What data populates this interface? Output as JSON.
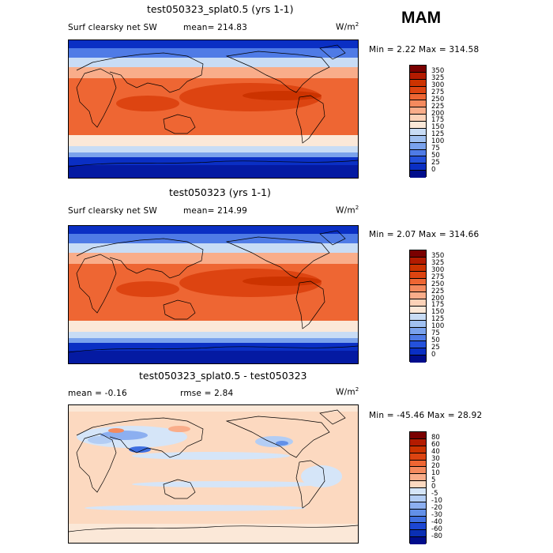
{
  "season": "MAM",
  "panels": [
    {
      "title": "test050323_splat0.5 (yrs 1-1)",
      "left_label": "Surf clearsky net SW",
      "mid_label": "mean= 214.83",
      "units_base": "W/m",
      "units_sup": "2",
      "minmax": "Min =    2.22 Max = 314.58",
      "levels": [
        "350",
        "325",
        "300",
        "275",
        "250",
        "225",
        "200",
        "175",
        "150",
        "125",
        "100",
        "75",
        "50",
        "25",
        "0"
      ]
    },
    {
      "title": "test050323 (yrs 1-1)",
      "left_label": "Surf clearsky net SW",
      "mid_label": "mean= 214.99",
      "units_base": "W/m",
      "units_sup": "2",
      "minmax": "Min =    2.07 Max = 314.66",
      "levels": [
        "350",
        "325",
        "300",
        "275",
        "250",
        "225",
        "200",
        "175",
        "150",
        "125",
        "100",
        "75",
        "50",
        "25",
        "0"
      ]
    },
    {
      "title": "test050323_splat0.5 - test050323",
      "left_label": "mean =   -0.16",
      "mid_label": "rmse =    2.84",
      "units_base": "W/m",
      "units_sup": "2",
      "minmax": "Min = -45.46 Max =  28.92",
      "levels": [
        "80",
        "60",
        "40",
        "30",
        "20",
        "10",
        "5",
        "0",
        "-5",
        "-10",
        "-20",
        "-30",
        "-40",
        "-60",
        "-80"
      ]
    }
  ],
  "colors": {
    "abs": [
      "#7a0000",
      "#b31b00",
      "#cc3300",
      "#dd4411",
      "#ee6633",
      "#f48a5e",
      "#f9ad8a",
      "#fcd2b8",
      "#fbe8d8",
      "#c8dcf5",
      "#a0c0f0",
      "#7aa2ec",
      "#4f7be6",
      "#2451db",
      "#0a2fc4",
      "#000d8c"
    ],
    "diff": [
      "#7a0000",
      "#b31b00",
      "#cc3300",
      "#dd4411",
      "#ee6633",
      "#f48a5e",
      "#f9ad8a",
      "#fcd9c0",
      "#d5e5f8",
      "#b3cdf4",
      "#8caff0",
      "#6290e8",
      "#3f6fe0",
      "#1d47d2",
      "#0a2fb4",
      "#000d8c"
    ],
    "land_line": "#000000"
  }
}
